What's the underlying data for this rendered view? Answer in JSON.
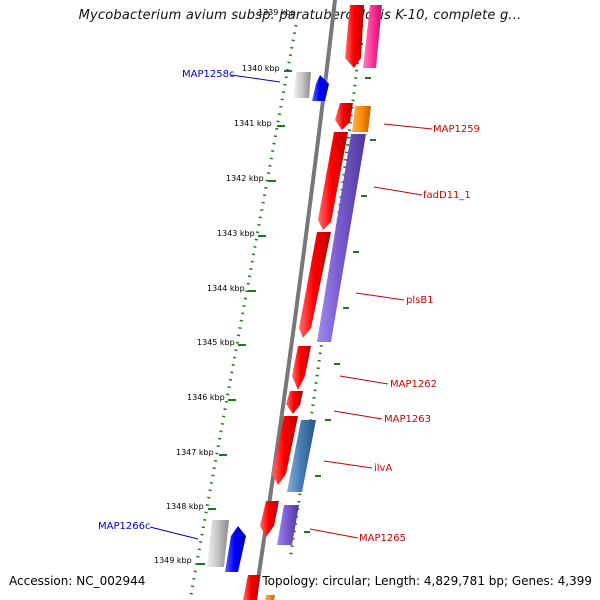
{
  "title": "Mycobacterium avium subsp. paratuberculosis K-10, complete g...",
  "footer": {
    "accession": "Accession: NC_002944",
    "topology": "Topology: circular; Length: 4,829,781 bp; Genes: 4,399"
  },
  "ticks": [
    "1339 kbp",
    "1340 kbp",
    "1341 kbp",
    "1342 kbp",
    "1343 kbp",
    "1344 kbp",
    "1345 kbp",
    "1346 kbp",
    "1347 kbp",
    "1348 kbp",
    "1349 kbp"
  ],
  "genes": [
    {
      "label": "MAP1258c",
      "color": "#0000cc"
    },
    {
      "label": "MAP1259",
      "color": "#cc0000"
    },
    {
      "label": "fadD11_1",
      "color": "#cc0000"
    },
    {
      "label": "plsB1",
      "color": "#cc0000"
    },
    {
      "label": "MAP1262",
      "color": "#cc0000"
    },
    {
      "label": "MAP1263",
      "color": "#cc0000"
    },
    {
      "label": "ilvA",
      "color": "#cc0000"
    },
    {
      "label": "MAP1265",
      "color": "#cc0000"
    },
    {
      "label": "MAP1266c",
      "color": "#0000cc"
    }
  ],
  "colors": {
    "backbone": "#808080",
    "tick": "#1a7a1a",
    "forward_gene": "#ff0000",
    "reverse_gene": "#0000ff",
    "pseudo_gene": "#c0c0c0",
    "cog_purple": "#7a5ccf",
    "cog_blue": "#4a7fb5",
    "cog_orange": "#ff8c00",
    "cog_pink": "#ff3399"
  }
}
